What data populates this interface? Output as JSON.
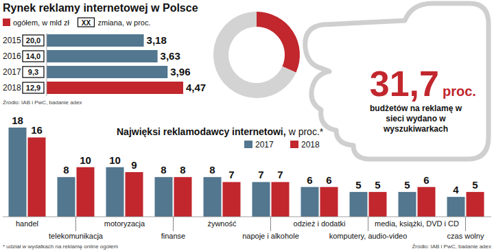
{
  "chart_data": [
    {
      "type": "bar",
      "orientation": "horizontal",
      "title": "Rynek reklamy internetowej w Polsce",
      "categories": [
        "2015",
        "2016",
        "2017",
        "2018"
      ],
      "series": [
        {
          "name": "ogółem, w mld zł",
          "color": "#c1272d",
          "colors": [
            "#52778f",
            "#52778f",
            "#52778f",
            "#c1272d"
          ],
          "values": [
            3.18,
            3.63,
            3.96,
            4.47
          ],
          "value_labels": [
            "3,18",
            "3,63",
            "3,96",
            "4,47"
          ]
        }
      ],
      "change": {
        "name": "zmiana, w proc.",
        "symbol": "XX",
        "values": [
          20.0,
          14.0,
          9.3,
          12.9
        ],
        "value_labels": [
          "20,0",
          "14,0",
          "9,3",
          "12,9"
        ]
      },
      "xlim": [
        0,
        4.47
      ],
      "xticks": [],
      "data_labels": true,
      "tick_labels": "y",
      "legend": "top-left",
      "source": "Źródło: IAB i PwC, badanie adex"
    },
    {
      "type": "pie",
      "values": [
        31.7,
        68.3
      ],
      "colors": [
        "#c1272d",
        "#d3d3d3"
      ],
      "value_labels": [
        "31,7",
        null
      ],
      "annotations": [
        "proc.",
        "budżetów na reklamę w sieci wydano w wyszukiwarkach"
      ]
    },
    {
      "type": "bar",
      "title": "Najwięksi reklamodawcy internetowi,",
      "subtitle": "w proc.*",
      "categories": [
        "handel",
        "telekomunikacja",
        "motoryzacja",
        "finanse",
        "żywność",
        "napoje i alkohole",
        "odzież i dodatki",
        "komputery, audio-video",
        "media, książki, DVD i CD",
        "czas wolny"
      ],
      "series": [
        {
          "name": "2017",
          "color": "#52778f",
          "values": [
            18,
            8,
            10,
            8,
            8,
            7,
            6,
            5,
            5,
            4
          ]
        },
        {
          "name": "2018",
          "color": "#c1272d",
          "values": [
            16,
            10,
            9,
            8,
            7,
            7,
            6,
            5,
            6,
            5
          ]
        }
      ],
      "ylim": [
        0,
        18
      ],
      "yticks": [],
      "data_labels": true,
      "tick_labels": "x",
      "legend": "top",
      "footnote": "* udział w wydatkach na reklamę online ogółem",
      "source": "Źródło: IAB i PwC, badanie adex"
    }
  ]
}
